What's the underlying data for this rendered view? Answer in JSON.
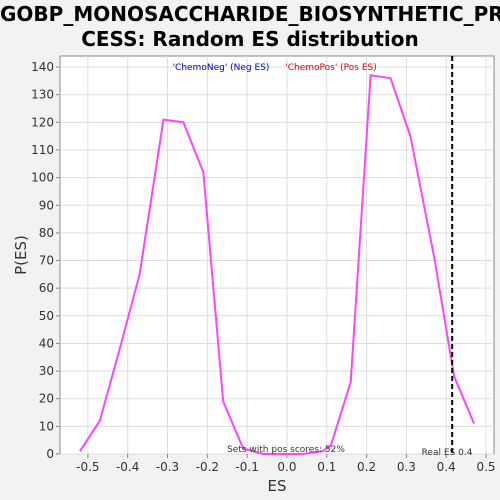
{
  "chart_data": {
    "type": "line",
    "title_line1": "GOBP_MONOSACCHARIDE_BIOSYNTHETIC_PRO",
    "title_line2": "CESS: Random ES distribution",
    "xlabel": "ES",
    "ylabel": "P(ES)",
    "xlim": [
      -0.57,
      0.52
    ],
    "ylim": [
      0,
      144
    ],
    "xticks": [
      -0.5,
      -0.4,
      -0.3,
      -0.2,
      -0.1,
      0.0,
      0.1,
      0.2,
      0.3,
      0.4,
      0.5
    ],
    "xtick_labels": [
      "-0.5",
      "-0.4",
      "-0.3",
      "-0.2",
      "-0.1",
      "0.0",
      "0.1",
      "0.2",
      "0.3",
      "0.4",
      "0.5"
    ],
    "yticks": [
      0,
      10,
      20,
      30,
      40,
      50,
      60,
      70,
      80,
      90,
      100,
      110,
      120,
      130,
      140
    ],
    "ytick_labels": [
      "0",
      "10",
      "20",
      "30",
      "40",
      "50",
      "60",
      "70",
      "80",
      "90",
      "100",
      "110",
      "120",
      "130",
      "140"
    ],
    "grid": true,
    "line_color": "#ff44ff",
    "series": [
      {
        "x": [
          -0.52,
          -0.47,
          -0.42,
          -0.37,
          -0.31,
          -0.26,
          -0.21,
          -0.16,
          -0.11,
          -0.06,
          -0.01,
          0.04,
          0.09,
          0.11,
          0.16,
          0.21,
          0.26,
          0.31,
          0.37,
          0.42,
          0.47
        ],
        "y": [
          1,
          12,
          38,
          65,
          121,
          120,
          102,
          19,
          2,
          0,
          0,
          0,
          1,
          3,
          26,
          137,
          136,
          115,
          71,
          28,
          11
        ]
      }
    ],
    "legend": [
      {
        "label": "'ChemoNeg' (Neg ES)",
        "color": "#0000cc"
      },
      {
        "label": "'ChemoPos' (Pos ES)",
        "color": "#dd0000"
      }
    ],
    "legend_position": "top-center",
    "real_es": 0.415,
    "real_es_label": "Real ES 0.4",
    "annotation": "Sets with pos scores: 52%"
  }
}
